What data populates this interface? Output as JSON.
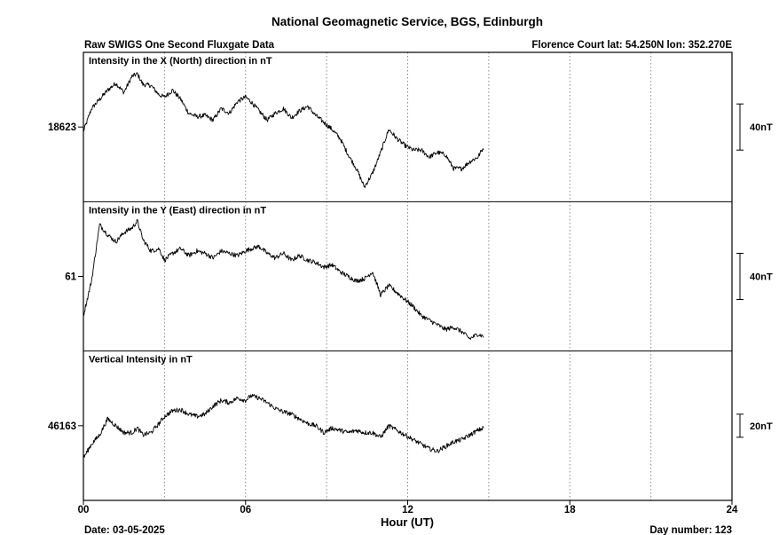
{
  "title": "National Geomagnetic Service, BGS, Edinburgh",
  "subtitle_left": "Raw SWIGS One Second Fluxgate Data",
  "station": "Florence Court  lat: 54.250N lon: 352.270E",
  "xlabel": "Hour (UT)",
  "date_label": "Date: 03-05-2025",
  "day_label": "Day number:  123",
  "colors": {
    "trace": "#000000",
    "grid": "#888888",
    "frame": "#000000"
  },
  "chart_data": {
    "type": "line",
    "x_ticks": [
      "00",
      "06",
      "12",
      "18",
      "24"
    ],
    "xlim": [
      0,
      24
    ],
    "grid": "dotted vertical lines every 3 hours",
    "panels": [
      {
        "label": "Intensity in the X (North) direction in nT",
        "center_value": "18623",
        "scale_label": "40nT",
        "scale_nT": 40,
        "x": [
          0,
          0.3,
          0.6,
          0.9,
          1.2,
          1.5,
          1.8,
          2.0,
          2.2,
          2.5,
          2.8,
          3.0,
          3.3,
          3.6,
          3.9,
          4.2,
          4.5,
          4.8,
          5.1,
          5.4,
          5.7,
          6.0,
          6.2,
          6.5,
          6.8,
          7.1,
          7.4,
          7.7,
          8.0,
          8.3,
          8.6,
          8.9,
          9.2,
          9.5,
          9.8,
          10.1,
          10.4,
          10.7,
          11.0,
          11.3,
          11.6,
          11.9,
          12.2,
          12.5,
          12.8,
          13.1,
          13.4,
          13.7,
          14.0,
          14.3,
          14.6,
          14.8
        ],
        "y": [
          -4,
          16,
          24,
          32,
          38,
          30,
          44,
          46,
          37,
          36,
          28,
          26,
          32,
          24,
          12,
          9,
          10,
          6,
          16,
          12,
          22,
          26,
          22,
          14,
          6,
          12,
          16,
          8,
          14,
          18,
          10,
          4,
          -2,
          -10,
          -24,
          -36,
          -52,
          -40,
          -22,
          -2,
          -10,
          -16,
          -20,
          -20,
          -26,
          -22,
          -24,
          -36,
          -36,
          -30,
          -26,
          -18
        ]
      },
      {
        "label": "Intensity in the Y (East) direction in nT",
        "center_value": "61",
        "scale_label": "40nT",
        "scale_nT": 40,
        "x": [
          0,
          0.3,
          0.6,
          0.9,
          1.2,
          1.5,
          1.8,
          2.0,
          2.2,
          2.5,
          2.8,
          3.0,
          3.3,
          3.6,
          3.9,
          4.2,
          4.5,
          4.8,
          5.1,
          5.4,
          5.7,
          6.0,
          6.2,
          6.5,
          6.8,
          7.1,
          7.4,
          7.7,
          8.0,
          8.3,
          8.6,
          8.9,
          9.2,
          9.5,
          9.8,
          10.1,
          10.4,
          10.7,
          11.0,
          11.3,
          11.6,
          11.9,
          12.2,
          12.5,
          12.8,
          13.1,
          13.4,
          13.7,
          14.0,
          14.3,
          14.6,
          14.8
        ],
        "y": [
          -34,
          -4,
          45,
          36,
          30,
          38,
          42,
          48,
          32,
          22,
          24,
          14,
          20,
          24,
          18,
          22,
          20,
          16,
          22,
          20,
          18,
          22,
          24,
          26,
          20,
          16,
          20,
          14,
          18,
          14,
          12,
          8,
          10,
          4,
          0,
          -4,
          -2,
          4,
          -16,
          -8,
          -14,
          -20,
          -26,
          -34,
          -38,
          -42,
          -46,
          -44,
          -48,
          -54,
          -50,
          -52
        ]
      },
      {
        "label": "Vertical Intensity in nT",
        "center_value": "46163",
        "scale_label": "20nT",
        "scale_nT": 20,
        "x": [
          0,
          0.3,
          0.6,
          0.9,
          1.2,
          1.5,
          1.8,
          2.0,
          2.2,
          2.5,
          2.8,
          3.0,
          3.3,
          3.6,
          3.9,
          4.2,
          4.5,
          4.8,
          5.1,
          5.4,
          5.7,
          6.0,
          6.2,
          6.5,
          6.8,
          7.1,
          7.4,
          7.7,
          8.0,
          8.3,
          8.6,
          8.9,
          9.2,
          9.5,
          9.8,
          10.1,
          10.4,
          10.7,
          11.0,
          11.3,
          11.6,
          11.9,
          12.2,
          12.5,
          12.8,
          13.1,
          13.4,
          13.7,
          14.0,
          14.3,
          14.6,
          14.8
        ],
        "y": [
          -28,
          -16,
          -8,
          6,
          0,
          -6,
          -6,
          -2,
          -8,
          -6,
          2,
          8,
          13,
          14,
          10,
          8,
          10,
          17,
          22,
          20,
          24,
          22,
          26,
          24,
          20,
          15,
          12,
          10,
          6,
          2,
          0,
          -6,
          -2,
          -4,
          -6,
          -4,
          -6,
          -6,
          -10,
          0,
          -4,
          -8,
          -12,
          -16,
          -20,
          -22,
          -18,
          -14,
          -12,
          -8,
          -4,
          -2
        ]
      }
    ]
  }
}
